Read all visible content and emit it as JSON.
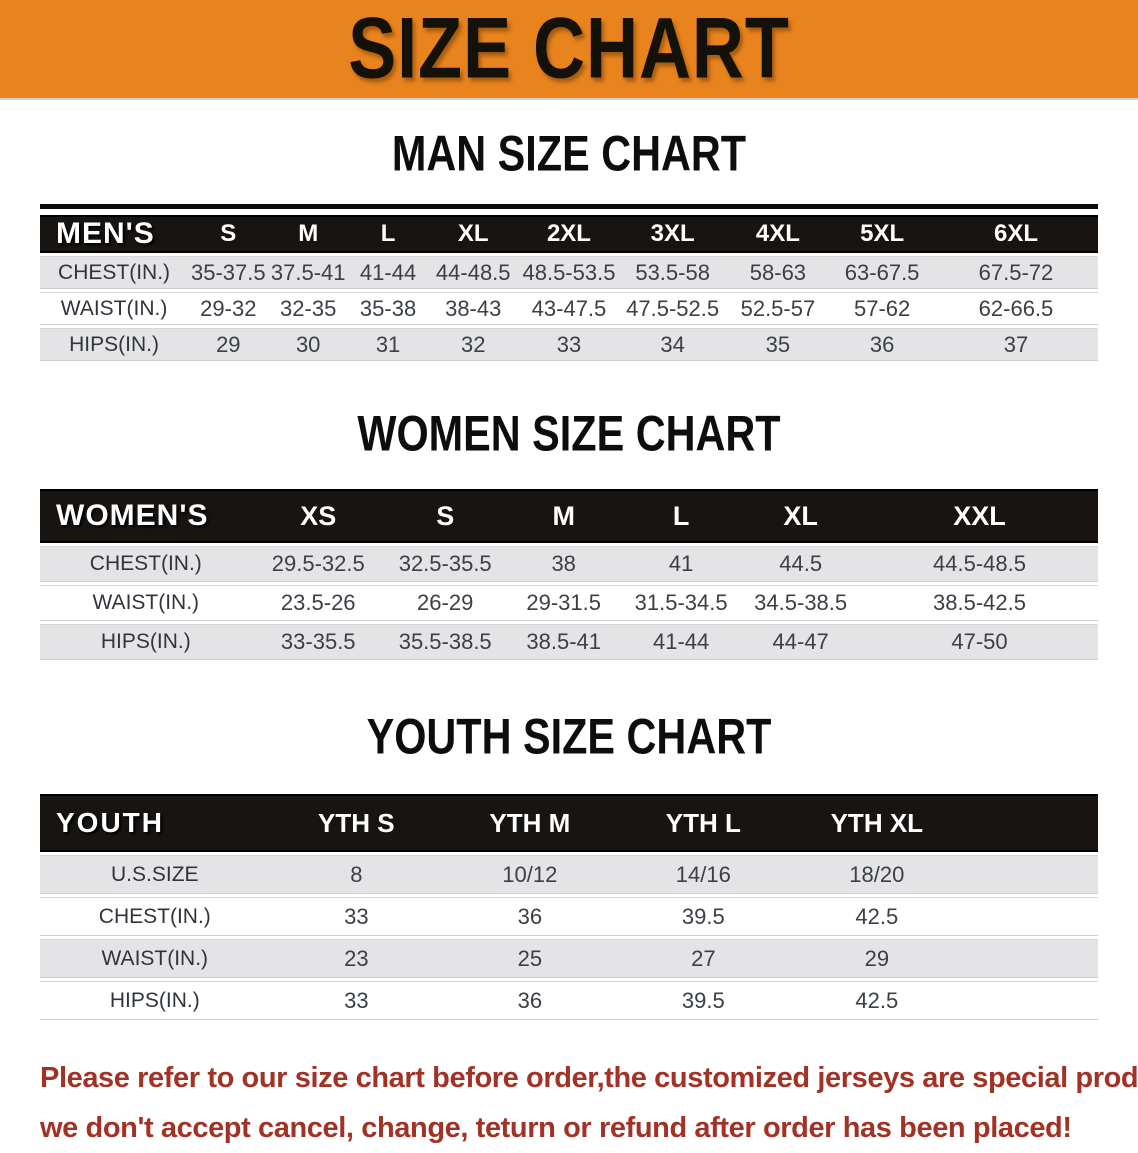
{
  "banner": {
    "title": "SIZE CHART",
    "bg_color": "#E8831D"
  },
  "sections": [
    {
      "heading": "MAN SIZE CHART",
      "table": {
        "header_label": "MEN'S",
        "columns": [
          "S",
          "M",
          "L",
          "XL",
          "2XL",
          "3XL",
          "4XL",
          "5XL",
          "6XL"
        ],
        "rows": [
          {
            "label": "CHEST(IN.)",
            "values": [
              "35-37.5",
              "37.5-41",
              "41-44",
              "44-48.5",
              "48.5-53.5",
              "53.5-58",
              "58-63",
              "63-67.5",
              "67.5-72"
            ]
          },
          {
            "label": "WAIST(IN.)",
            "values": [
              "29-32",
              "32-35",
              "35-38",
              "38-43",
              "43-47.5",
              "47.5-52.5",
              "52.5-57",
              "57-62",
              "62-66.5"
            ]
          },
          {
            "label": "HIPS(IN.)",
            "values": [
              "29",
              "30",
              "31",
              "32",
              "33",
              "34",
              "35",
              "36",
              "37"
            ]
          }
        ]
      }
    },
    {
      "heading": "WOMEN SIZE CHART",
      "table": {
        "header_label": "WOMEN'S",
        "columns": [
          "XS",
          "S",
          "M",
          "L",
          "XL",
          "XXL"
        ],
        "rows": [
          {
            "label": "CHEST(IN.)",
            "values": [
              "29.5-32.5",
              "32.5-35.5",
              "38",
              "41",
              "44.5",
              "44.5-48.5"
            ]
          },
          {
            "label": "WAIST(IN.)",
            "values": [
              "23.5-26",
              "26-29",
              "29-31.5",
              "31.5-34.5",
              "34.5-38.5",
              "38.5-42.5"
            ]
          },
          {
            "label": "HIPS(IN.)",
            "values": [
              "33-35.5",
              "35.5-38.5",
              "38.5-41",
              "41-44",
              "44-47",
              "47-50"
            ]
          }
        ]
      }
    },
    {
      "heading": "YOUTH SIZE CHART",
      "table": {
        "header_label": "YOUTH",
        "columns": [
          "YTH S",
          "YTH M",
          "YTH L",
          "YTH XL"
        ],
        "rows": [
          {
            "label": "U.S.SIZE",
            "values": [
              "8",
              "10/12",
              "14/16",
              "18/20"
            ]
          },
          {
            "label": "CHEST(IN.)",
            "values": [
              "33",
              "36",
              "39.5",
              "42.5"
            ]
          },
          {
            "label": "WAIST(IN.)",
            "values": [
              "23",
              "25",
              "27",
              "29"
            ]
          },
          {
            "label": "HIPS(IN.)",
            "values": [
              "33",
              "36",
              "39.5",
              "42.5"
            ]
          }
        ]
      }
    }
  ],
  "footnote": {
    "lines": [
      "Please refer to our size chart before order,the customized jerseys are special products,",
      "we don't accept cancel, change, teturn or refund after order has been placed!"
    ],
    "color": "#A33226"
  },
  "colors": {
    "banner_bg": "#E8831D",
    "header_band": "#171412",
    "row_gray": "#E4E4E6",
    "table_text": "#3B4046",
    "note_red": "#A33226"
  }
}
